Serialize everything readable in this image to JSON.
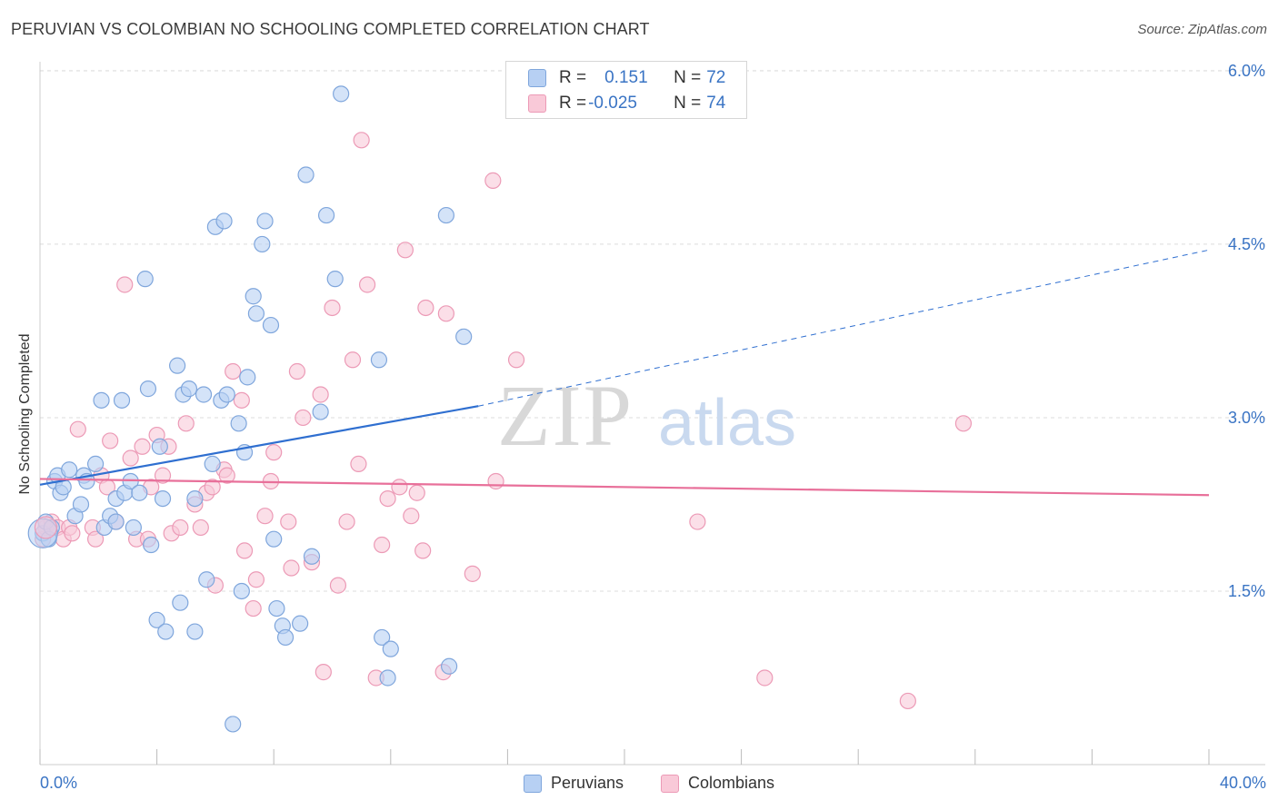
{
  "title": "PERUVIAN VS COLOMBIAN NO SCHOOLING COMPLETED CORRELATION CHART",
  "source": "Source: ZipAtlas.com",
  "watermark": {
    "zip": "ZIP",
    "atlas": "atlas"
  },
  "legend": {
    "rows": [
      {
        "r_label": "R = ",
        "r_value": "0.151",
        "n_label": "N = ",
        "n_value": "72"
      },
      {
        "r_label": "R = ",
        "r_value": "-0.025",
        "n_label": "N = ",
        "n_value": "74"
      }
    ]
  },
  "bottom_legend": {
    "peruvians": "Peruvians",
    "colombians": "Colombians"
  },
  "colors": {
    "blue_fill": "#b7d0f3",
    "blue_stroke": "#7fa6dc",
    "blue_line": "#2f6fd0",
    "pink_fill": "#f9c9d8",
    "pink_stroke": "#ec9ab6",
    "pink_line": "#e8709a",
    "grid": "#dcdcdc",
    "tick_text": "#3a74c4"
  },
  "chart_data": {
    "type": "scatter",
    "title": "PERUVIAN VS COLOMBIAN NO SCHOOLING COMPLETED CORRELATION CHART",
    "xlabel": "",
    "ylabel": "No Schooling Completed",
    "xlim": [
      0,
      40
    ],
    "ylim": [
      0,
      6.3
    ],
    "x_tick_labels": [
      "0.0%",
      "40.0%"
    ],
    "y_ticks": [
      1.5,
      3.0,
      4.5,
      6.0
    ],
    "y_tick_labels": [
      "1.5%",
      "3.0%",
      "4.5%",
      "6.0%"
    ],
    "grid": true,
    "legend_position": "top-center",
    "series": [
      {
        "name": "Peruvians",
        "r": 0.151,
        "n": 72,
        "trend": {
          "x0": 0.0,
          "y0": 2.42,
          "x1": 15.0,
          "y1": 3.1,
          "dashed_to_x": 40.0,
          "dashed_to_y": 4.45
        },
        "points": [
          [
            0.1,
            2.0
          ],
          [
            0.2,
            2.1
          ],
          [
            0.3,
            1.95
          ],
          [
            0.4,
            2.05
          ],
          [
            0.5,
            2.45
          ],
          [
            0.6,
            2.5
          ],
          [
            0.7,
            2.35
          ],
          [
            0.8,
            2.4
          ],
          [
            1.0,
            2.55
          ],
          [
            1.2,
            2.15
          ],
          [
            1.4,
            2.25
          ],
          [
            1.5,
            2.5
          ],
          [
            1.6,
            2.45
          ],
          [
            1.9,
            2.6
          ],
          [
            2.1,
            3.15
          ],
          [
            2.2,
            2.05
          ],
          [
            2.4,
            2.15
          ],
          [
            2.6,
            2.3
          ],
          [
            2.8,
            3.15
          ],
          [
            2.9,
            2.35
          ],
          [
            3.1,
            2.45
          ],
          [
            3.2,
            2.05
          ],
          [
            3.4,
            2.35
          ],
          [
            3.6,
            4.2
          ],
          [
            3.7,
            3.25
          ],
          [
            3.8,
            1.9
          ],
          [
            4.0,
            1.25
          ],
          [
            4.1,
            2.75
          ],
          [
            4.2,
            2.3
          ],
          [
            4.3,
            1.15
          ],
          [
            4.7,
            3.45
          ],
          [
            4.8,
            1.4
          ],
          [
            4.9,
            3.2
          ],
          [
            5.1,
            3.25
          ],
          [
            5.3,
            1.15
          ],
          [
            5.3,
            2.3
          ],
          [
            5.6,
            3.2
          ],
          [
            5.7,
            1.6
          ],
          [
            5.9,
            2.6
          ],
          [
            6.0,
            4.65
          ],
          [
            6.2,
            3.15
          ],
          [
            6.3,
            4.7
          ],
          [
            6.4,
            3.2
          ],
          [
            6.6,
            0.35
          ],
          [
            6.8,
            2.95
          ],
          [
            6.9,
            1.5
          ],
          [
            7.0,
            2.7
          ],
          [
            7.1,
            3.35
          ],
          [
            7.3,
            4.05
          ],
          [
            7.4,
            3.9
          ],
          [
            7.6,
            4.5
          ],
          [
            7.7,
            4.7
          ],
          [
            7.9,
            3.8
          ],
          [
            8.0,
            1.95
          ],
          [
            8.1,
            1.35
          ],
          [
            8.3,
            1.2
          ],
          [
            8.4,
            1.1
          ],
          [
            8.9,
            1.22
          ],
          [
            9.1,
            5.1
          ],
          [
            9.3,
            1.8
          ],
          [
            9.6,
            3.05
          ],
          [
            9.8,
            4.75
          ],
          [
            10.1,
            4.2
          ],
          [
            10.3,
            5.8
          ],
          [
            11.6,
            3.5
          ],
          [
            11.7,
            1.1
          ],
          [
            11.9,
            0.75
          ],
          [
            12.0,
            1.0
          ],
          [
            13.9,
            4.75
          ],
          [
            14.0,
            0.85
          ],
          [
            14.5,
            3.7
          ],
          [
            2.6,
            2.1
          ]
        ]
      },
      {
        "name": "Colombians",
        "r": -0.025,
        "n": 74,
        "trend": {
          "x0": 0.0,
          "y0": 2.47,
          "x1": 40.0,
          "y1": 2.33
        },
        "points": [
          [
            0.1,
            1.95
          ],
          [
            0.2,
            2.05
          ],
          [
            0.4,
            2.1
          ],
          [
            0.6,
            2.05
          ],
          [
            0.8,
            1.95
          ],
          [
            1.0,
            2.05
          ],
          [
            1.1,
            2.0
          ],
          [
            1.3,
            2.9
          ],
          [
            1.8,
            2.05
          ],
          [
            1.9,
            1.95
          ],
          [
            2.1,
            2.5
          ],
          [
            2.3,
            2.4
          ],
          [
            2.4,
            2.8
          ],
          [
            2.6,
            2.1
          ],
          [
            2.9,
            4.15
          ],
          [
            3.1,
            2.65
          ],
          [
            3.3,
            1.95
          ],
          [
            3.5,
            2.75
          ],
          [
            3.7,
            1.95
          ],
          [
            3.8,
            2.4
          ],
          [
            4.0,
            2.85
          ],
          [
            4.2,
            2.5
          ],
          [
            4.4,
            2.75
          ],
          [
            4.5,
            2.0
          ],
          [
            4.8,
            2.05
          ],
          [
            5.0,
            2.95
          ],
          [
            5.3,
            2.25
          ],
          [
            5.5,
            2.05
          ],
          [
            5.7,
            2.35
          ],
          [
            5.9,
            2.4
          ],
          [
            6.0,
            1.55
          ],
          [
            6.3,
            2.55
          ],
          [
            6.4,
            2.5
          ],
          [
            6.6,
            3.4
          ],
          [
            6.9,
            3.15
          ],
          [
            7.0,
            1.85
          ],
          [
            7.3,
            1.35
          ],
          [
            7.4,
            1.6
          ],
          [
            7.7,
            2.15
          ],
          [
            7.9,
            2.45
          ],
          [
            8.0,
            2.7
          ],
          [
            8.5,
            2.1
          ],
          [
            8.6,
            1.7
          ],
          [
            8.8,
            3.4
          ],
          [
            9.0,
            3.0
          ],
          [
            9.3,
            1.75
          ],
          [
            9.6,
            3.2
          ],
          [
            9.7,
            0.8
          ],
          [
            10.0,
            3.95
          ],
          [
            10.2,
            1.55
          ],
          [
            10.5,
            2.1
          ],
          [
            10.7,
            3.5
          ],
          [
            10.9,
            2.6
          ],
          [
            11.0,
            5.4
          ],
          [
            11.2,
            4.15
          ],
          [
            11.5,
            0.75
          ],
          [
            11.7,
            1.9
          ],
          [
            11.9,
            2.3
          ],
          [
            12.3,
            2.4
          ],
          [
            12.5,
            4.45
          ],
          [
            12.7,
            2.15
          ],
          [
            12.9,
            2.35
          ],
          [
            13.1,
            1.85
          ],
          [
            13.2,
            3.95
          ],
          [
            13.8,
            0.8
          ],
          [
            13.9,
            3.9
          ],
          [
            14.8,
            1.65
          ],
          [
            15.5,
            5.05
          ],
          [
            15.6,
            2.45
          ],
          [
            16.3,
            3.5
          ],
          [
            22.5,
            2.1
          ],
          [
            24.8,
            0.75
          ],
          [
            29.7,
            0.55
          ],
          [
            31.6,
            2.95
          ]
        ]
      }
    ]
  }
}
